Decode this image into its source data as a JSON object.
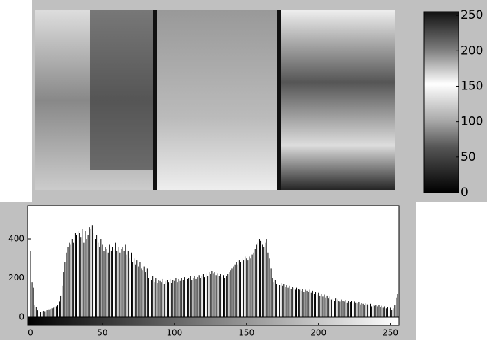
{
  "chart_data": [
    {
      "type": "colorbar",
      "ylim": [
        0,
        255
      ],
      "yticks": [
        0,
        50,
        100,
        150,
        200,
        250
      ]
    },
    {
      "type": "histogram",
      "xlim": [
        0,
        255
      ],
      "xticks": [
        0,
        50,
        100,
        150,
        200,
        250
      ],
      "ylim": [
        0,
        570
      ],
      "yticks": [
        0,
        200,
        400
      ],
      "color": "#000000",
      "x": [
        0,
        1,
        2,
        3,
        4,
        5,
        6,
        7,
        8,
        9,
        10,
        11,
        12,
        13,
        14,
        15,
        16,
        17,
        18,
        19,
        20,
        21,
        22,
        23,
        24,
        25,
        26,
        27,
        28,
        29,
        30,
        31,
        32,
        33,
        34,
        35,
        36,
        37,
        38,
        39,
        40,
        41,
        42,
        43,
        44,
        45,
        46,
        47,
        48,
        49,
        50,
        51,
        52,
        53,
        54,
        55,
        56,
        57,
        58,
        59,
        60,
        61,
        62,
        63,
        64,
        65,
        66,
        67,
        68,
        69,
        70,
        71,
        72,
        73,
        74,
        75,
        76,
        77,
        78,
        79,
        80,
        81,
        82,
        83,
        84,
        85,
        86,
        87,
        88,
        89,
        90,
        91,
        92,
        93,
        94,
        95,
        96,
        97,
        98,
        99,
        100,
        101,
        102,
        103,
        104,
        105,
        106,
        107,
        108,
        109,
        110,
        111,
        112,
        113,
        114,
        115,
        116,
        117,
        118,
        119,
        120,
        121,
        122,
        123,
        124,
        125,
        126,
        127,
        128,
        129,
        130,
        131,
        132,
        133,
        134,
        135,
        136,
        137,
        138,
        139,
        140,
        141,
        142,
        143,
        144,
        145,
        146,
        147,
        148,
        149,
        150,
        151,
        152,
        153,
        154,
        155,
        156,
        157,
        158,
        159,
        160,
        161,
        162,
        163,
        164,
        165,
        166,
        167,
        168,
        169,
        170,
        171,
        172,
        173,
        174,
        175,
        176,
        177,
        178,
        179,
        180,
        181,
        182,
        183,
        184,
        185,
        186,
        187,
        188,
        189,
        190,
        191,
        192,
        193,
        194,
        195,
        196,
        197,
        198,
        199,
        200,
        201,
        202,
        203,
        204,
        205,
        206,
        207,
        208,
        209,
        210,
        211,
        212,
        213,
        214,
        215,
        216,
        217,
        218,
        219,
        220,
        221,
        222,
        223,
        224,
        225,
        226,
        227,
        228,
        229,
        230,
        231,
        232,
        233,
        234,
        235,
        236,
        237,
        238,
        239,
        240,
        241,
        242,
        243,
        244,
        245,
        246,
        247,
        248,
        249,
        250,
        251,
        252,
        253,
        254,
        255
      ],
      "values": [
        340,
        180,
        150,
        60,
        50,
        35,
        30,
        28,
        30,
        32,
        30,
        35,
        38,
        40,
        42,
        45,
        48,
        50,
        55,
        60,
        80,
        110,
        160,
        230,
        280,
        330,
        360,
        380,
        370,
        400,
        380,
        430,
        420,
        440,
        430,
        410,
        450,
        380,
        440,
        400,
        420,
        460,
        450,
        470,
        430,
        400,
        420,
        380,
        360,
        400,
        370,
        340,
        360,
        350,
        330,
        370,
        340,
        360,
        350,
        380,
        340,
        360,
        330,
        350,
        360,
        340,
        370,
        320,
        340,
        300,
        330,
        280,
        300,
        270,
        290,
        260,
        280,
        250,
        240,
        260,
        230,
        250,
        200,
        220,
        190,
        210,
        180,
        200,
        175,
        190,
        185,
        180,
        195,
        170,
        185,
        190,
        180,
        195,
        175,
        190,
        185,
        200,
        180,
        195,
        185,
        200,
        190,
        205,
        185,
        195,
        200,
        210,
        190,
        200,
        210,
        195,
        205,
        215,
        200,
        210,
        220,
        205,
        225,
        210,
        230,
        220,
        235,
        225,
        230,
        215,
        225,
        210,
        220,
        205,
        215,
        200,
        210,
        220,
        230,
        240,
        250,
        260,
        270,
        280,
        270,
        290,
        280,
        300,
        290,
        310,
        300,
        290,
        310,
        300,
        320,
        330,
        350,
        370,
        380,
        400,
        390,
        370,
        360,
        380,
        400,
        330,
        300,
        250,
        200,
        180,
        190,
        170,
        180,
        165,
        175,
        160,
        170,
        155,
        165,
        150,
        160,
        145,
        155,
        150,
        140,
        150,
        145,
        140,
        135,
        145,
        130,
        140,
        135,
        130,
        140,
        125,
        135,
        120,
        130,
        115,
        125,
        110,
        120,
        105,
        115,
        100,
        110,
        95,
        105,
        90,
        100,
        85,
        95,
        90,
        85,
        80,
        90,
        85,
        80,
        88,
        75,
        85,
        78,
        82,
        70,
        80,
        75,
        70,
        78,
        65,
        72,
        68,
        60,
        70,
        65,
        60,
        68,
        55,
        62,
        58,
        60,
        55,
        62,
        50,
        58,
        48,
        55,
        45,
        52,
        40,
        48,
        38,
        45,
        60,
        100,
        120
      ]
    }
  ]
}
